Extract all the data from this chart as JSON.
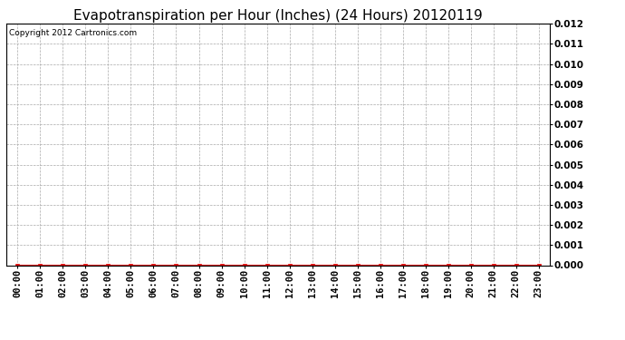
{
  "title": "Evapotranspiration per Hour (Inches) (24 Hours) 20120119",
  "copyright_text": "Copyright 2012 Cartronics.com",
  "x_labels": [
    "00:00",
    "01:00",
    "02:00",
    "03:00",
    "04:00",
    "05:00",
    "06:00",
    "07:00",
    "08:00",
    "09:00",
    "10:00",
    "11:00",
    "12:00",
    "13:00",
    "14:00",
    "15:00",
    "16:00",
    "17:00",
    "18:00",
    "19:00",
    "20:00",
    "21:00",
    "22:00",
    "23:00"
  ],
  "y_values": [
    0,
    0,
    0,
    0,
    0,
    0,
    0,
    0,
    0,
    0,
    0,
    0,
    0,
    0,
    0,
    0,
    0,
    0,
    0,
    0,
    0,
    0,
    0,
    0
  ],
  "ylim": [
    0,
    0.012
  ],
  "yticks": [
    0.0,
    0.001,
    0.002,
    0.003,
    0.004,
    0.005,
    0.006,
    0.007,
    0.008,
    0.009,
    0.01,
    0.011,
    0.012
  ],
  "line_color": "#dd0000",
  "marker_color": "#dd0000",
  "marker": "s",
  "marker_size": 3,
  "grid_color": "#aaaaaa",
  "background_color": "#ffffff",
  "plot_bg_color": "#ffffff",
  "title_fontsize": 11,
  "copyright_fontsize": 6.5,
  "tick_fontsize": 7.5,
  "ytick_fontweight": "bold"
}
